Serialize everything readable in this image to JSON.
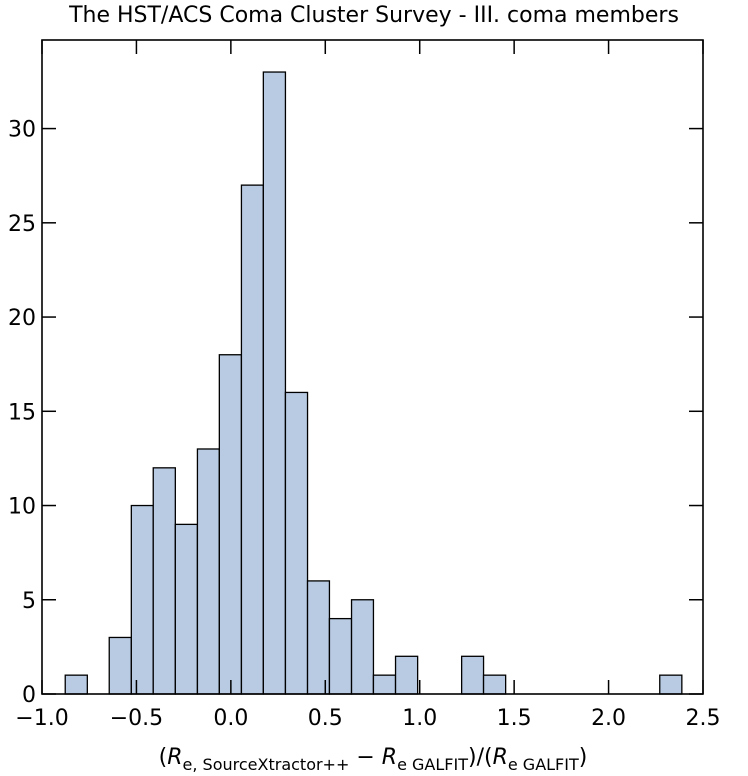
{
  "chart_data": {
    "type": "histogram",
    "title": "The HST/ACS Coma Cluster Survey - III. coma members",
    "xlabel": [
      {
        "text": "(",
        "style": "normal"
      },
      {
        "text": "R",
        "style": "italic"
      },
      {
        "text": "e, SourceXtractor++",
        "style": "sub"
      },
      {
        "text": " − ",
        "style": "normal"
      },
      {
        "text": "R",
        "style": "italic"
      },
      {
        "text": "e GALFIT",
        "style": "sub"
      },
      {
        "text": ")/(",
        "style": "normal"
      },
      {
        "text": "R",
        "style": "italic"
      },
      {
        "text": "e GALFIT",
        "style": "sub"
      },
      {
        "text": ")",
        "style": "normal"
      }
    ],
    "bins": [
      -0.877,
      -0.76,
      -0.644,
      -0.527,
      -0.411,
      -0.294,
      -0.177,
      -0.061,
      0.056,
      0.172,
      0.289,
      0.406,
      0.522,
      0.639,
      0.755,
      0.872,
      0.989,
      1.105,
      1.222,
      1.338,
      1.455,
      1.572,
      1.688,
      1.805,
      1.921,
      2.038,
      2.155,
      2.271,
      2.388
    ],
    "values": [
      1,
      0,
      3,
      10,
      12,
      9,
      13,
      18,
      27,
      33,
      16,
      6,
      4,
      5,
      1,
      2,
      0,
      0,
      2,
      1,
      0,
      0,
      0,
      0,
      0,
      0,
      0,
      1
    ],
    "color": "#b9cbe3",
    "edgecolor": "#000000",
    "xlim": [
      -1.0,
      2.5
    ],
    "xticks": [
      {
        "value": -1.0,
        "label": "−1.0"
      },
      {
        "value": -0.5,
        "label": "−0.5"
      },
      {
        "value": 0.0,
        "label": "0.0"
      },
      0.5,
      {
        "value": 1.0,
        "label": "1.0"
      },
      1.5,
      {
        "value": 2.0,
        "label": "2.0"
      },
      2.5
    ],
    "ylim": [
      0,
      34.7
    ],
    "yticks": [
      0,
      5,
      10,
      15,
      20,
      25,
      30
    ]
  }
}
